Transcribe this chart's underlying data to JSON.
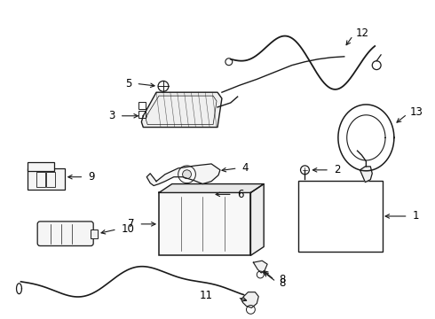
{
  "bg_color": "#ffffff",
  "line_color": "#1a1a1a",
  "text_color": "#000000",
  "figsize": [
    4.9,
    3.6
  ],
  "dpi": 100,
  "label_fontsize": 8.5,
  "label_fontweight": "normal"
}
